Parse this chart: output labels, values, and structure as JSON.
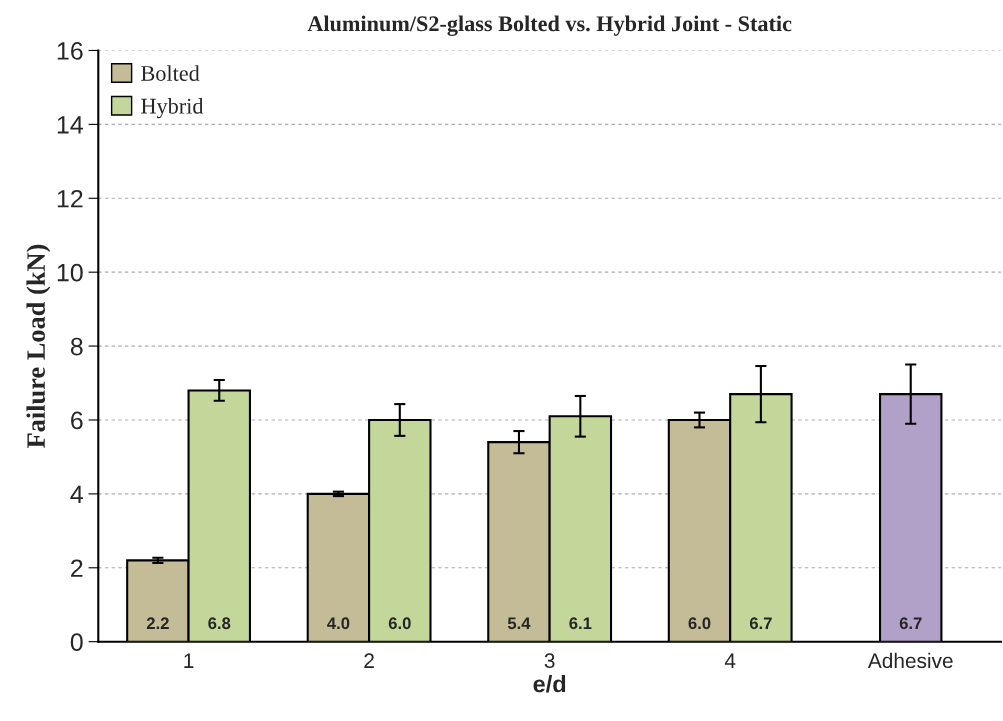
{
  "chart_data": {
    "type": "bar",
    "title": "Aluminum/S2-glass Bolted vs. Hybrid Joint - Static",
    "xlabel": "e/d",
    "ylabel": "Failure Load (kN)",
    "categories": [
      "1",
      "2",
      "3",
      "4",
      "Adhesive"
    ],
    "series": [
      {
        "name": "Bolted",
        "color": "#c4bc96",
        "values": [
          2.2,
          4.0,
          5.4,
          6.0,
          null
        ],
        "value_labels": [
          "2.2",
          "4.0",
          "5.4",
          "6.0",
          null
        ],
        "errors": [
          0.07,
          0.06,
          0.3,
          0.2,
          null
        ]
      },
      {
        "name": "Hybrid",
        "color": "#c4d79b",
        "values": [
          6.8,
          6.0,
          6.1,
          6.7,
          null
        ],
        "value_labels": [
          "6.8",
          "6.0",
          "6.1",
          "6.7",
          null
        ],
        "errors": [
          0.28,
          0.43,
          0.55,
          0.76,
          null
        ]
      },
      {
        "color": "#b1a0c7",
        "values": [
          null,
          null,
          null,
          null,
          6.7
        ],
        "value_labels": [
          null,
          null,
          null,
          null,
          "6.7"
        ],
        "errors": [
          null,
          null,
          null,
          null,
          0.8
        ]
      }
    ],
    "ylim": [
      0,
      16
    ],
    "yticks": [
      0,
      2,
      4,
      6,
      8,
      10,
      12,
      14,
      16
    ],
    "grid": "y",
    "legend": "top left"
  }
}
